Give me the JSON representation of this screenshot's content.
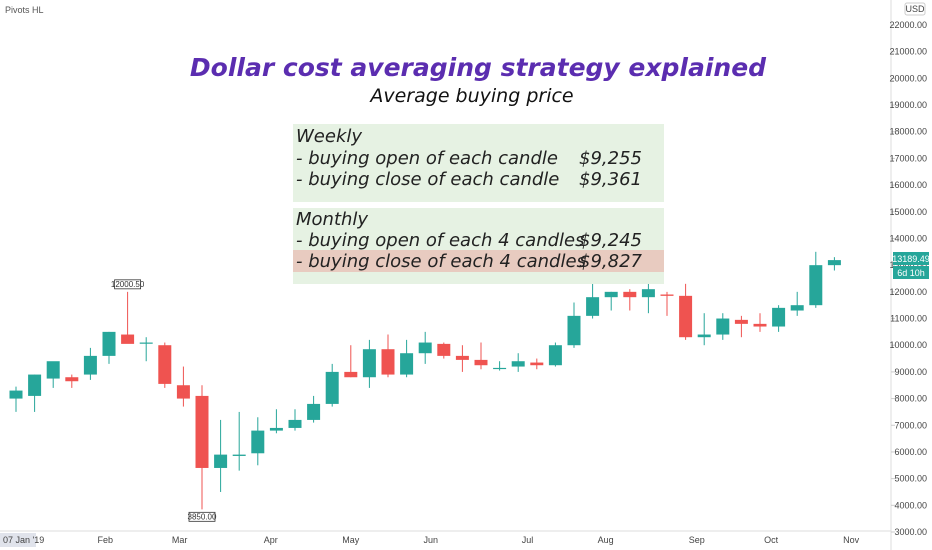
{
  "indicator_label": "Pivots HL",
  "currency_label": "USD",
  "title": "Dollar cost averaging strategy explained",
  "subtitle": "Average buying price",
  "colors": {
    "up": "#26a69a",
    "down": "#ef5350",
    "title": "#5b2db0",
    "box_bg": "#e6f2e3",
    "highlight_bg": "#e8cbc0",
    "price_tag": "#26a69a"
  },
  "weekly": {
    "heading": "Weekly",
    "rows": [
      {
        "label": "- buying open of each candle",
        "value": "$9,255"
      },
      {
        "label": "- buying close of each candle",
        "value": "$9,361"
      }
    ]
  },
  "monthly": {
    "heading": "Monthly",
    "rows": [
      {
        "label": "- buying open of each 4 candles",
        "value": "$9,245"
      },
      {
        "label": "- buying close of each 4 candles",
        "value": "$9,827",
        "highlight": true
      }
    ]
  },
  "price_tag": {
    "value": "13189.49",
    "countdown": "6d 10h"
  },
  "pivots": [
    {
      "label": "12000.50",
      "price": 12000.5,
      "candle": 6,
      "position": "above"
    },
    {
      "label": "3850.00",
      "price": 3850,
      "candle": 10,
      "position": "below"
    }
  ],
  "chart_data": {
    "type": "candlestick",
    "interval": "weekly",
    "y_axis": {
      "min": 3000,
      "max": 22000,
      "ticks": [
        "3000.00",
        "4000.00",
        "5000.00",
        "6000.00",
        "7000.00",
        "8000.00",
        "9000.00",
        "10000.00",
        "11000.00",
        "12000.00",
        "13000.00",
        "14000.00",
        "15000.00",
        "16000.00",
        "17000.00",
        "18000.00",
        "19000.00",
        "20000.00",
        "21000.00",
        "22000.00"
      ]
    },
    "x_axis": {
      "labels": [
        {
          "text": "07 Jan '19",
          "candle": 0
        },
        {
          "text": "Feb",
          "candle": 4.8
        },
        {
          "text": "Mar",
          "candle": 8.8
        },
        {
          "text": "Apr",
          "candle": 13.7
        },
        {
          "text": "May",
          "candle": 18.0
        },
        {
          "text": "Jun",
          "candle": 22.3
        },
        {
          "text": "Jul",
          "candle": 27.5
        },
        {
          "text": "Aug",
          "candle": 31.7
        },
        {
          "text": "Sep",
          "candle": 36.6
        },
        {
          "text": "Oct",
          "candle": 40.6
        },
        {
          "text": "Nov",
          "candle": 44.9
        }
      ]
    },
    "candles": [
      {
        "o": 8000,
        "h": 8450,
        "l": 7500,
        "c": 8300
      },
      {
        "o": 8100,
        "h": 8900,
        "l": 7500,
        "c": 8900
      },
      {
        "o": 8750,
        "h": 9300,
        "l": 8400,
        "c": 9400
      },
      {
        "o": 8800,
        "h": 8900,
        "l": 8400,
        "c": 8650
      },
      {
        "o": 8900,
        "h": 9900,
        "l": 8700,
        "c": 9600
      },
      {
        "o": 9600,
        "h": 10500,
        "l": 9300,
        "c": 10500
      },
      {
        "o": 10400,
        "h": 12000.5,
        "l": 10100,
        "c": 10050
      },
      {
        "o": 10100,
        "h": 10300,
        "l": 9400,
        "c": 10100
      },
      {
        "o": 10000,
        "h": 10100,
        "l": 8400,
        "c": 8550
      },
      {
        "o": 8500,
        "h": 9200,
        "l": 7700,
        "c": 8000
      },
      {
        "o": 8100,
        "h": 8500,
        "l": 3850,
        "c": 5400
      },
      {
        "o": 5400,
        "h": 7200,
        "l": 4500,
        "c": 5900
      },
      {
        "o": 5850,
        "h": 7500,
        "l": 5300,
        "c": 5900
      },
      {
        "o": 5950,
        "h": 7300,
        "l": 5500,
        "c": 6800
      },
      {
        "o": 6800,
        "h": 7600,
        "l": 6700,
        "c": 6900
      },
      {
        "o": 6900,
        "h": 7600,
        "l": 6800,
        "c": 7200
      },
      {
        "o": 7200,
        "h": 8100,
        "l": 7100,
        "c": 7800
      },
      {
        "o": 7800,
        "h": 9300,
        "l": 7700,
        "c": 9000
      },
      {
        "o": 9000,
        "h": 10000,
        "l": 8800,
        "c": 8800
      },
      {
        "o": 8800,
        "h": 10200,
        "l": 8400,
        "c": 9850
      },
      {
        "o": 9850,
        "h": 10400,
        "l": 8800,
        "c": 8900
      },
      {
        "o": 8900,
        "h": 10200,
        "l": 8800,
        "c": 9700
      },
      {
        "o": 9700,
        "h": 10500,
        "l": 9300,
        "c": 10100
      },
      {
        "o": 10050,
        "h": 10100,
        "l": 9500,
        "c": 9600
      },
      {
        "o": 9600,
        "h": 10000,
        "l": 9000,
        "c": 9450
      },
      {
        "o": 9450,
        "h": 10100,
        "l": 9100,
        "c": 9250
      },
      {
        "o": 9150,
        "h": 9400,
        "l": 9050,
        "c": 9150
      },
      {
        "o": 9200,
        "h": 9700,
        "l": 9000,
        "c": 9400
      },
      {
        "o": 9350,
        "h": 9500,
        "l": 9100,
        "c": 9250
      },
      {
        "o": 9250,
        "h": 10100,
        "l": 9200,
        "c": 10000
      },
      {
        "o": 10000,
        "h": 11600,
        "l": 9900,
        "c": 11100
      },
      {
        "o": 11100,
        "h": 12300,
        "l": 11000,
        "c": 11800
      },
      {
        "o": 11800,
        "h": 12000,
        "l": 11300,
        "c": 12000
      },
      {
        "o": 12000,
        "h": 12100,
        "l": 11300,
        "c": 11800
      },
      {
        "o": 11800,
        "h": 12500,
        "l": 11200,
        "c": 12100
      },
      {
        "o": 11900,
        "h": 12000,
        "l": 11100,
        "c": 11850
      },
      {
        "o": 11850,
        "h": 12300,
        "l": 10200,
        "c": 10300
      },
      {
        "o": 10300,
        "h": 11200,
        "l": 10000,
        "c": 10400
      },
      {
        "o": 10400,
        "h": 11200,
        "l": 10200,
        "c": 11000
      },
      {
        "o": 10950,
        "h": 11100,
        "l": 10300,
        "c": 10800
      },
      {
        "o": 10800,
        "h": 11200,
        "l": 10500,
        "c": 10700
      },
      {
        "o": 10700,
        "h": 11500,
        "l": 10500,
        "c": 11400
      },
      {
        "o": 11300,
        "h": 12000,
        "l": 11100,
        "c": 11500
      },
      {
        "o": 11500,
        "h": 13500,
        "l": 11400,
        "c": 13000
      },
      {
        "o": 13000,
        "h": 13300,
        "l": 12800,
        "c": 13189.49
      }
    ]
  }
}
